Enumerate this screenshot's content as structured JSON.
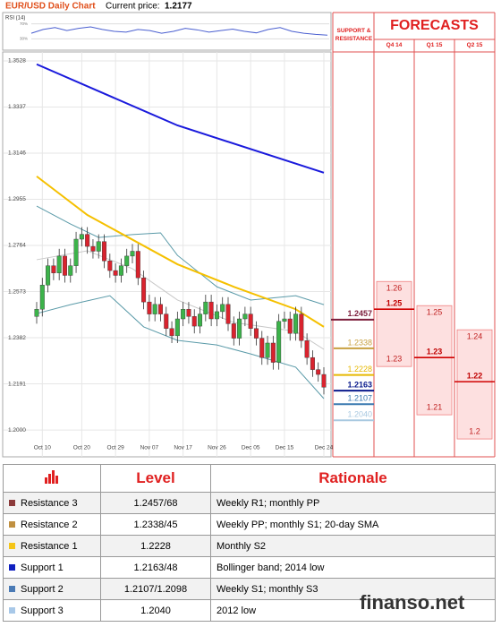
{
  "chart_data": {
    "type": "candlestick",
    "title": "EUR/USD Daily Chart",
    "current_price_label": "Current price:",
    "current_price": 1.2177,
    "categories": [
      null,
      "Oct 10",
      null,
      null,
      null,
      null,
      null,
      null,
      "Oct 20",
      null,
      null,
      null,
      null,
      null,
      "Oct 29",
      null,
      null,
      null,
      null,
      null,
      "Nov 07",
      null,
      null,
      null,
      null,
      null,
      "Nov 17",
      null,
      null,
      null,
      null,
      null,
      "Nov 26",
      null,
      null,
      null,
      null,
      null,
      "Dec 05",
      null,
      null,
      null,
      null,
      null,
      "Dec 15",
      null,
      null,
      null,
      null,
      null,
      null,
      "Dec 24"
    ],
    "open": [
      1.247,
      1.25,
      1.26,
      1.268,
      1.265,
      1.272,
      1.264,
      1.268,
      1.279,
      1.281,
      1.276,
      1.274,
      1.278,
      1.27,
      1.266,
      1.264,
      1.268,
      1.272,
      1.274,
      1.263,
      1.253,
      1.248,
      1.252,
      1.248,
      1.242,
      1.239,
      1.246,
      1.25,
      1.247,
      1.243,
      1.248,
      1.253,
      1.246,
      1.249,
      1.252,
      1.244,
      1.238,
      1.246,
      1.248,
      1.242,
      1.238,
      1.23,
      1.236,
      1.228,
      1.245,
      1.246,
      1.24,
      1.248,
      1.237,
      1.23,
      1.225,
      1.223
    ],
    "high": [
      1.253,
      1.263,
      1.271,
      1.271,
      1.275,
      1.275,
      1.271,
      1.282,
      1.284,
      1.284,
      1.279,
      1.281,
      1.281,
      1.273,
      1.269,
      1.271,
      1.275,
      1.277,
      1.277,
      1.266,
      1.256,
      1.255,
      1.255,
      1.251,
      1.245,
      1.249,
      1.253,
      1.253,
      1.25,
      1.251,
      1.256,
      1.256,
      1.252,
      1.255,
      1.255,
      1.247,
      1.249,
      1.251,
      1.251,
      1.245,
      1.241,
      1.239,
      1.239,
      1.248,
      1.249,
      1.249,
      1.251,
      1.251,
      1.24,
      1.233,
      1.228,
      1.226
    ],
    "low": [
      1.244,
      1.247,
      1.257,
      1.262,
      1.262,
      1.261,
      1.261,
      1.265,
      1.276,
      1.273,
      1.271,
      1.271,
      1.267,
      1.263,
      1.261,
      1.261,
      1.265,
      1.269,
      1.26,
      1.25,
      1.245,
      1.245,
      1.245,
      1.239,
      1.236,
      1.236,
      1.243,
      1.244,
      1.24,
      1.24,
      1.245,
      1.243,
      1.243,
      1.246,
      1.241,
      1.235,
      1.235,
      1.243,
      1.239,
      1.235,
      1.227,
      1.227,
      1.225,
      1.225,
      1.242,
      1.237,
      1.237,
      1.234,
      1.227,
      1.222,
      1.22,
      1.2147
    ],
    "close": [
      1.25,
      1.26,
      1.268,
      1.265,
      1.272,
      1.264,
      1.268,
      1.279,
      1.281,
      1.276,
      1.274,
      1.278,
      1.27,
      1.266,
      1.264,
      1.268,
      1.272,
      1.274,
      1.263,
      1.253,
      1.248,
      1.252,
      1.248,
      1.242,
      1.239,
      1.246,
      1.25,
      1.247,
      1.243,
      1.248,
      1.253,
      1.246,
      1.249,
      1.252,
      1.244,
      1.238,
      1.246,
      1.248,
      1.242,
      1.238,
      1.23,
      1.236,
      1.228,
      1.245,
      1.246,
      1.24,
      1.248,
      1.237,
      1.23,
      1.225,
      1.223,
      1.2177
    ],
    "up_color": "#3cb34a",
    "down_color": "#d9232e",
    "overlays": [
      {
        "color": "#c8c8c8",
        "width": 1,
        "x": [
          0,
          9,
          17,
          25,
          35,
          46,
          51
        ],
        "values": [
          1.2705,
          1.2742,
          1.2668,
          1.2538,
          1.2445,
          1.2408,
          1.2334
        ]
      },
      {
        "color": "#5a9aa8",
        "width": 1,
        "x": [
          0,
          6,
          11,
          17,
          22,
          25,
          32,
          38,
          46,
          51
        ],
        "values": [
          1.2927,
          1.2853,
          1.2797,
          1.2809,
          1.2816,
          1.2723,
          1.2593,
          1.2538,
          1.2556,
          1.2519
        ]
      },
      {
        "color": "#5a9aa8",
        "width": 1,
        "x": [
          0,
          6,
          13,
          19,
          25,
          32,
          38,
          46,
          51
        ],
        "values": [
          1.2482,
          1.2519,
          1.2556,
          1.2427,
          1.2371,
          1.2352,
          1.2315,
          1.226,
          1.213
        ]
      },
      {
        "color": "#f5c000",
        "width": 2,
        "x": [
          0,
          9,
          25,
          35,
          46,
          51
        ],
        "values": [
          1.305,
          1.289,
          1.2686,
          1.2593,
          1.25,
          1.2427
        ]
      },
      {
        "color": "#1a1adc",
        "width": 2,
        "x": [
          0,
          25,
          51
        ],
        "values": [
          1.3514,
          1.3261,
          1.3065
        ]
      }
    ],
    "ylim": [
      1.1889,
      1.3565
    ],
    "yticks": [
      {
        "value": 1.2,
        "label": "1.2000"
      },
      1.2191,
      1.2382,
      1.2573,
      1.2764,
      1.2955,
      1.3146,
      1.3337,
      1.3528
    ],
    "grid": true,
    "rsi": {
      "label": "RSI (14)",
      "color": "#4a5fd0",
      "ylim": [
        0,
        100
      ],
      "yticks": [
        {
          "value": 30,
          "label": "30%"
        },
        {
          "value": 70,
          "label": "70%"
        }
      ],
      "values": [
        45,
        55,
        60,
        52,
        58,
        62,
        55,
        50,
        48,
        55,
        52,
        45,
        50,
        58,
        54,
        48,
        52,
        56,
        50,
        46,
        55,
        60,
        50,
        45,
        42,
        40
      ]
    },
    "levels": {
      "title": "SUPPORT & RESISTANCE",
      "values": [
        1.2457,
        1.2338,
        1.2228,
        1.2163,
        1.2107,
        1.204
      ],
      "value_labels": [
        "1.2457",
        "1.2338",
        "1.2228",
        "1.2163",
        "1.2107",
        "1.2040"
      ],
      "colors": [
        "#7b1c3a",
        "#c8a040",
        "#e6b800",
        "#0a1a8c",
        "#3a7ab0",
        "#a8c8e0"
      ]
    },
    "forecasts": {
      "title": "FORECASTS",
      "box_color": "#fde0e0",
      "line_color": "#d00000",
      "series": [
        {
          "name": "Q4 14",
          "values": [
            1.26,
            1.25,
            1.23
          ]
        },
        {
          "name": "Q1 15",
          "values": [
            1.25,
            1.23,
            1.21
          ]
        },
        {
          "name": "Q2 15",
          "values": [
            1.24,
            1.22,
            1.2
          ]
        }
      ]
    }
  },
  "table": {
    "header": [
      "Level",
      "Rationale"
    ],
    "rows": [
      [
        "Resistance 3",
        "1.2457/68",
        "Weekly R1; monthly PP"
      ],
      [
        "Resistance 2",
        "1.2338/45",
        "Weekly PP; monthly S1; 20-day SMA"
      ],
      [
        "Resistance 1",
        "1.2228",
        "Monthly S2"
      ],
      [
        "Support 1",
        "1.2163/48",
        "Bollinger band; 2014 low"
      ],
      [
        "Support 2",
        "1.2107/1.2098",
        "Weekly S1; monthly S3"
      ],
      [
        "Support 3",
        "1.2040",
        "2012 low"
      ]
    ],
    "colors": [
      "#8b3a3a",
      "#c09040",
      "#f5c518",
      "#1020c0",
      "#4a7ab5",
      "#a8c8e8"
    ]
  },
  "watermark": "finanso.net"
}
